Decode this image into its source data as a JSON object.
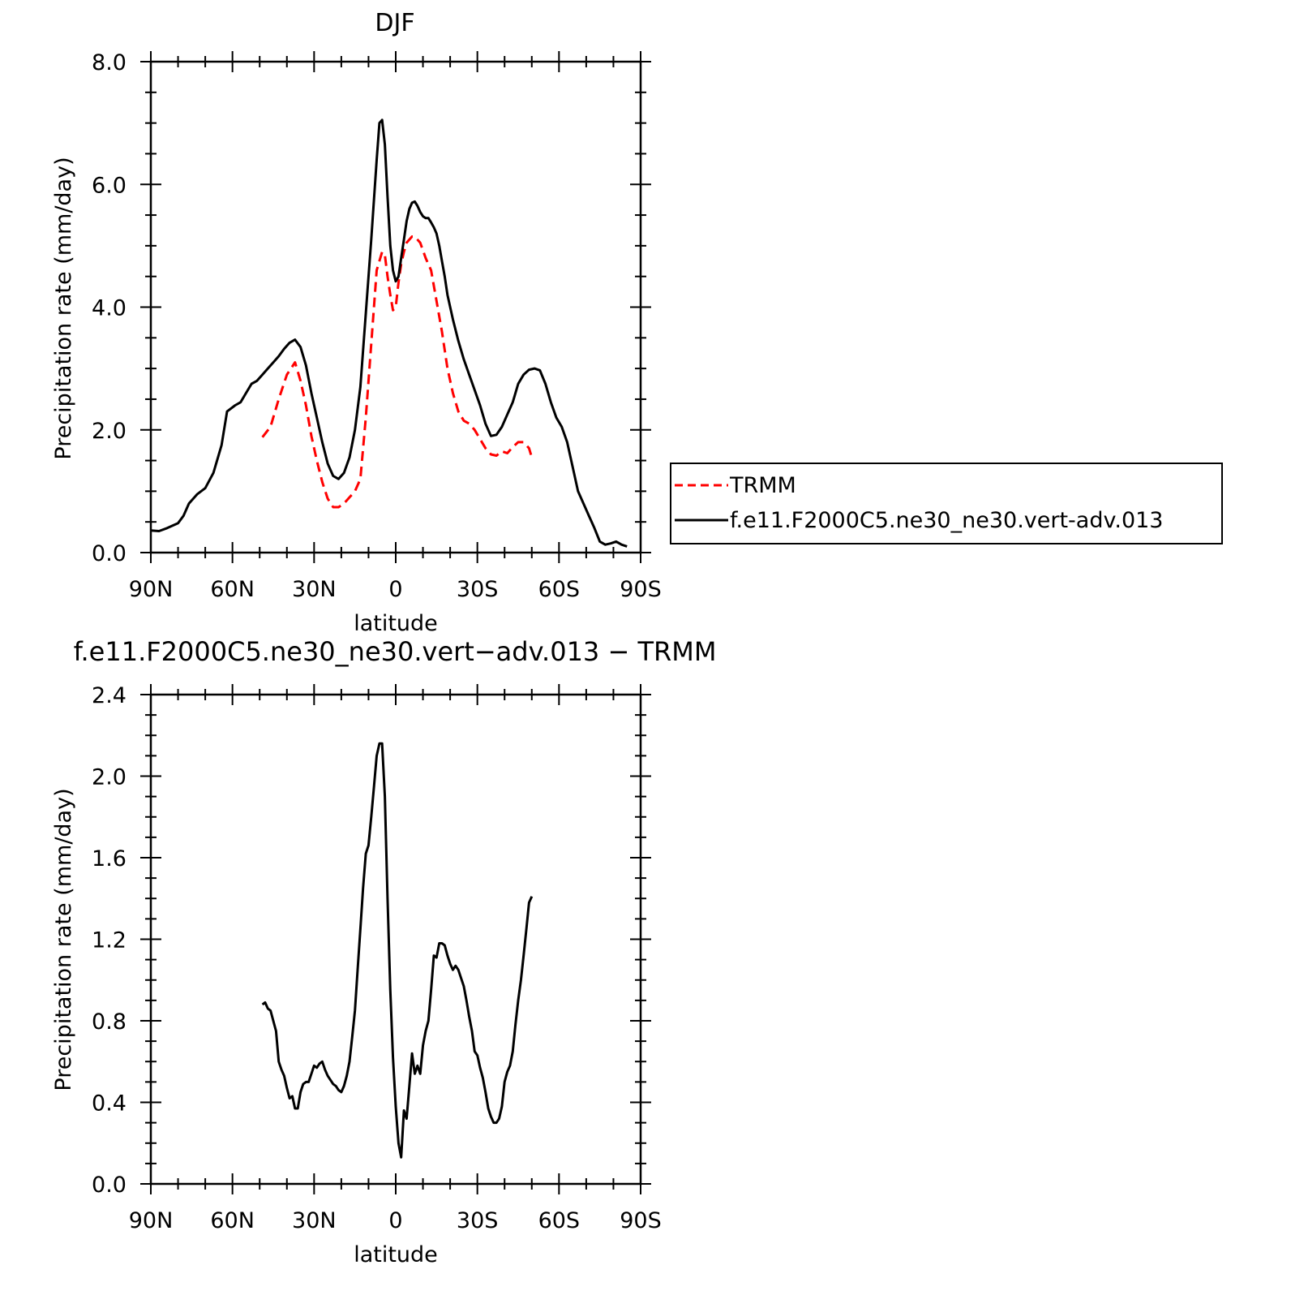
{
  "chart_data": [
    {
      "type": "line",
      "title": "DJF",
      "xlabel": "latitude",
      "ylabel": "Precipitation rate (mm/day)",
      "xlim": [
        -90,
        90
      ],
      "ylim": [
        0,
        8
      ],
      "x_ticks": [
        -90,
        -60,
        -30,
        0,
        30,
        60,
        90
      ],
      "x_tick_labels": [
        "90N",
        "60N",
        "30N",
        "0",
        "30S",
        "60S",
        "90S"
      ],
      "y_ticks": [
        0,
        2,
        4,
        6,
        8
      ],
      "y_tick_labels": [
        "0.0",
        "2.0",
        "4.0",
        "6.0",
        "8.0"
      ],
      "legend": {
        "position": "right"
      },
      "series": [
        {
          "name": "TRMM",
          "color": "#ff0000",
          "dashed": true,
          "points": [
            [
              -49,
              1.88
            ],
            [
              -46,
              2.05
            ],
            [
              -43,
              2.5
            ],
            [
              -40,
              2.9
            ],
            [
              -37,
              3.1
            ],
            [
              -35,
              2.8
            ],
            [
              -33,
              2.4
            ],
            [
              -31,
              1.9
            ],
            [
              -29,
              1.5
            ],
            [
              -27,
              1.15
            ],
            [
              -25,
              0.88
            ],
            [
              -23,
              0.74
            ],
            [
              -21,
              0.74
            ],
            [
              -19,
              0.8
            ],
            [
              -17,
              0.9
            ],
            [
              -15,
              1.0
            ],
            [
              -13,
              1.2
            ],
            [
              -11,
              2.2
            ],
            [
              -9,
              3.4
            ],
            [
              -7,
              4.6
            ],
            [
              -5,
              4.9
            ],
            [
              -4,
              4.85
            ],
            [
              -3,
              4.5
            ],
            [
              -2,
              4.2
            ],
            [
              -1,
              3.95
            ],
            [
              0,
              4.0
            ],
            [
              1,
              4.4
            ],
            [
              2,
              4.7
            ],
            [
              3,
              4.9
            ],
            [
              4,
              5.05
            ],
            [
              5,
              5.1
            ],
            [
              6,
              5.15
            ],
            [
              7,
              5.15
            ],
            [
              8,
              5.1
            ],
            [
              9,
              5.05
            ],
            [
              11,
              4.8
            ],
            [
              13,
              4.6
            ],
            [
              15,
              4.1
            ],
            [
              17,
              3.6
            ],
            [
              19,
              3.0
            ],
            [
              21,
              2.6
            ],
            [
              23,
              2.3
            ],
            [
              25,
              2.15
            ],
            [
              27,
              2.1
            ],
            [
              29,
              2.0
            ],
            [
              31,
              1.85
            ],
            [
              33,
              1.7
            ],
            [
              35,
              1.6
            ],
            [
              37,
              1.58
            ],
            [
              39,
              1.65
            ],
            [
              41,
              1.62
            ],
            [
              43,
              1.72
            ],
            [
              45,
              1.8
            ],
            [
              47,
              1.8
            ],
            [
              49,
              1.7
            ],
            [
              50,
              1.55
            ]
          ]
        },
        {
          "name": "f.e11.F2000C5.ne30_ne30.vert-adv.013",
          "color": "#000000",
          "dashed": false,
          "points": [
            [
              -90,
              0.36
            ],
            [
              -87,
              0.35
            ],
            [
              -84,
              0.4
            ],
            [
              -80,
              0.48
            ],
            [
              -78,
              0.6
            ],
            [
              -76,
              0.8
            ],
            [
              -73,
              0.95
            ],
            [
              -70,
              1.05
            ],
            [
              -67,
              1.3
            ],
            [
              -64,
              1.75
            ],
            [
              -62,
              2.3
            ],
            [
              -59,
              2.4
            ],
            [
              -57,
              2.45
            ],
            [
              -55,
              2.6
            ],
            [
              -53,
              2.75
            ],
            [
              -51,
              2.8
            ],
            [
              -49,
              2.9
            ],
            [
              -47,
              3.0
            ],
            [
              -45,
              3.1
            ],
            [
              -43,
              3.2
            ],
            [
              -41,
              3.32
            ],
            [
              -39,
              3.42
            ],
            [
              -37,
              3.47
            ],
            [
              -35,
              3.35
            ],
            [
              -33,
              3.05
            ],
            [
              -31,
              2.6
            ],
            [
              -29,
              2.2
            ],
            [
              -27,
              1.8
            ],
            [
              -25,
              1.45
            ],
            [
              -23,
              1.25
            ],
            [
              -21,
              1.2
            ],
            [
              -19,
              1.3
            ],
            [
              -17,
              1.55
            ],
            [
              -15,
              2.0
            ],
            [
              -13,
              2.7
            ],
            [
              -11,
              3.9
            ],
            [
              -9,
              5.1
            ],
            [
              -7,
              6.4
            ],
            [
              -6,
              7.0
            ],
            [
              -5,
              7.05
            ],
            [
              -4,
              6.65
            ],
            [
              -3,
              5.8
            ],
            [
              -2,
              5.0
            ],
            [
              -1,
              4.6
            ],
            [
              0,
              4.42
            ],
            [
              1,
              4.5
            ],
            [
              2,
              4.8
            ],
            [
              3,
              5.1
            ],
            [
              4,
              5.4
            ],
            [
              5,
              5.6
            ],
            [
              6,
              5.7
            ],
            [
              7,
              5.72
            ],
            [
              8,
              5.65
            ],
            [
              9,
              5.55
            ],
            [
              10,
              5.48
            ],
            [
              11,
              5.45
            ],
            [
              12,
              5.45
            ],
            [
              13,
              5.38
            ],
            [
              14,
              5.3
            ],
            [
              15,
              5.2
            ],
            [
              16,
              5.0
            ],
            [
              17,
              4.75
            ],
            [
              18,
              4.5
            ],
            [
              19,
              4.2
            ],
            [
              21,
              3.8
            ],
            [
              23,
              3.45
            ],
            [
              25,
              3.15
            ],
            [
              27,
              2.9
            ],
            [
              29,
              2.65
            ],
            [
              31,
              2.4
            ],
            [
              33,
              2.1
            ],
            [
              35,
              1.9
            ],
            [
              37,
              1.92
            ],
            [
              39,
              2.05
            ],
            [
              41,
              2.25
            ],
            [
              43,
              2.45
            ],
            [
              45,
              2.75
            ],
            [
              47,
              2.9
            ],
            [
              49,
              2.98
            ],
            [
              51,
              3.0
            ],
            [
              53,
              2.97
            ],
            [
              55,
              2.75
            ],
            [
              57,
              2.45
            ],
            [
              59,
              2.2
            ],
            [
              61,
              2.05
            ],
            [
              63,
              1.8
            ],
            [
              65,
              1.4
            ],
            [
              67,
              1.0
            ],
            [
              69,
              0.8
            ],
            [
              71,
              0.6
            ],
            [
              73,
              0.4
            ],
            [
              75,
              0.18
            ],
            [
              77,
              0.13
            ],
            [
              79,
              0.15
            ],
            [
              81,
              0.18
            ],
            [
              83,
              0.13
            ],
            [
              85,
              0.1
            ]
          ]
        }
      ]
    },
    {
      "type": "line",
      "title": "f.e11.F2000C5.ne30_ne30.vert−adv.013 − TRMM",
      "xlabel": "latitude",
      "ylabel": "Precipitation rate (mm/day)",
      "xlim": [
        -90,
        90
      ],
      "ylim": [
        0,
        2.4
      ],
      "x_ticks": [
        -90,
        -60,
        -30,
        0,
        30,
        60,
        90
      ],
      "x_tick_labels": [
        "90N",
        "60N",
        "30N",
        "0",
        "30S",
        "60S",
        "90S"
      ],
      "y_ticks": [
        0,
        0.4,
        0.8,
        1.2,
        1.6,
        2.0,
        2.4
      ],
      "y_tick_labels": [
        "0.0",
        "0.4",
        "0.8",
        "1.2",
        "1.6",
        "2.0",
        "2.4"
      ],
      "series": [
        {
          "name": "f.e11.F2000C5.ne30_ne30.vert-adv.013 - TRMM",
          "color": "#000000",
          "dashed": false,
          "points": [
            [
              -49,
              0.88
            ],
            [
              -48,
              0.89
            ],
            [
              -47,
              0.86
            ],
            [
              -46,
              0.85
            ],
            [
              -44,
              0.75
            ],
            [
              -43,
              0.6
            ],
            [
              -42,
              0.56
            ],
            [
              -41,
              0.53
            ],
            [
              -40,
              0.47
            ],
            [
              -39,
              0.42
            ],
            [
              -38,
              0.43
            ],
            [
              -37,
              0.37
            ],
            [
              -36,
              0.37
            ],
            [
              -35,
              0.45
            ],
            [
              -34,
              0.49
            ],
            [
              -33,
              0.5
            ],
            [
              -32,
              0.5
            ],
            [
              -31,
              0.54
            ],
            [
              -30,
              0.58
            ],
            [
              -29,
              0.57
            ],
            [
              -28,
              0.59
            ],
            [
              -27,
              0.6
            ],
            [
              -26,
              0.56
            ],
            [
              -25,
              0.53
            ],
            [
              -24,
              0.51
            ],
            [
              -23,
              0.49
            ],
            [
              -22,
              0.48
            ],
            [
              -21,
              0.46
            ],
            [
              -20,
              0.45
            ],
            [
              -19,
              0.48
            ],
            [
              -18,
              0.53
            ],
            [
              -17,
              0.6
            ],
            [
              -16,
              0.72
            ],
            [
              -15,
              0.85
            ],
            [
              -14,
              1.05
            ],
            [
              -13,
              1.25
            ],
            [
              -12,
              1.45
            ],
            [
              -11,
              1.62
            ],
            [
              -10,
              1.66
            ],
            [
              -9,
              1.8
            ],
            [
              -8,
              1.95
            ],
            [
              -7,
              2.1
            ],
            [
              -6,
              2.16
            ],
            [
              -5,
              2.16
            ],
            [
              -4,
              1.9
            ],
            [
              -3,
              1.4
            ],
            [
              -2,
              0.95
            ],
            [
              -1,
              0.62
            ],
            [
              0,
              0.38
            ],
            [
              1,
              0.2
            ],
            [
              2,
              0.13
            ],
            [
              3,
              0.36
            ],
            [
              4,
              0.32
            ],
            [
              5,
              0.48
            ],
            [
              6,
              0.64
            ],
            [
              7,
              0.54
            ],
            [
              8,
              0.58
            ],
            [
              9,
              0.54
            ],
            [
              10,
              0.68
            ],
            [
              11,
              0.75
            ],
            [
              12,
              0.8
            ],
            [
              13,
              0.95
            ],
            [
              14,
              1.12
            ],
            [
              15,
              1.11
            ],
            [
              16,
              1.18
            ],
            [
              17,
              1.18
            ],
            [
              18,
              1.17
            ],
            [
              19,
              1.12
            ],
            [
              20,
              1.08
            ],
            [
              21,
              1.05
            ],
            [
              22,
              1.07
            ],
            [
              23,
              1.05
            ],
            [
              24,
              1.01
            ],
            [
              25,
              0.97
            ],
            [
              26,
              0.9
            ],
            [
              27,
              0.82
            ],
            [
              28,
              0.75
            ],
            [
              29,
              0.65
            ],
            [
              30,
              0.63
            ],
            [
              31,
              0.57
            ],
            [
              32,
              0.52
            ],
            [
              33,
              0.45
            ],
            [
              34,
              0.37
            ],
            [
              35,
              0.33
            ],
            [
              36,
              0.3
            ],
            [
              37,
              0.3
            ],
            [
              38,
              0.32
            ],
            [
              39,
              0.38
            ],
            [
              40,
              0.5
            ],
            [
              41,
              0.55
            ],
            [
              42,
              0.58
            ],
            [
              43,
              0.65
            ],
            [
              44,
              0.78
            ],
            [
              45,
              0.9
            ],
            [
              46,
              1.0
            ],
            [
              47,
              1.12
            ],
            [
              48,
              1.25
            ],
            [
              49,
              1.38
            ],
            [
              50,
              1.41
            ]
          ]
        }
      ]
    }
  ]
}
